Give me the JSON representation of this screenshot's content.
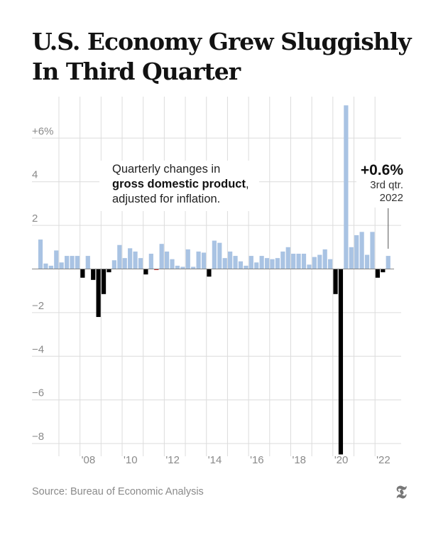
{
  "title": "U.S. Economy Grew Sluggishly In Third Quarter",
  "annotation": {
    "line1": "Quarterly changes in",
    "bold": "gross domestic product",
    "comma": ",",
    "line3": "adjusted for inflation."
  },
  "callout": {
    "value": "+0.6%",
    "line2": "3rd qtr.",
    "line3": "2022"
  },
  "source": "Source: Bureau of Economic Analysis",
  "logo": "T",
  "colors": {
    "positive": "#a9c3e3",
    "negative": "#000000",
    "slight_negative": "#d0312d",
    "grid": "#dcdcdc"
  },
  "chart_data": {
    "type": "bar",
    "title": "Quarterly changes in gross domestic product, adjusted for inflation.",
    "xlabel": "",
    "ylabel": "",
    "ylim": [
      -8.5,
      7.9
    ],
    "yticks": [
      {
        "v": 6,
        "label": "+6%"
      },
      {
        "v": 4,
        "label": "4"
      },
      {
        "v": 2,
        "label": "2"
      },
      {
        "v": 0,
        "label": ""
      },
      {
        "v": -2,
        "label": "−2"
      },
      {
        "v": -4,
        "label": "−4"
      },
      {
        "v": -6,
        "label": "−6"
      },
      {
        "v": -8,
        "label": "−8"
      }
    ],
    "xticks": [
      {
        "year": 2008,
        "label": "'08"
      },
      {
        "year": 2010,
        "label": "'10"
      },
      {
        "year": 2012,
        "label": "'12"
      },
      {
        "year": 2014,
        "label": "'14"
      },
      {
        "year": 2016,
        "label": "'16"
      },
      {
        "year": 2018,
        "label": "'18"
      },
      {
        "year": 2020,
        "label": "'20"
      },
      {
        "year": 2022,
        "label": "'22"
      }
    ],
    "start": "2006 Q1",
    "values": [
      1.35,
      0.25,
      0.15,
      0.85,
      0.3,
      0.6,
      0.6,
      0.6,
      -0.4,
      0.6,
      -0.5,
      -2.2,
      -1.15,
      -0.15,
      0.4,
      1.1,
      0.5,
      0.95,
      0.8,
      0.5,
      -0.25,
      0.7,
      -0.02,
      1.15,
      0.8,
      0.45,
      0.15,
      0.1,
      0.9,
      0.1,
      0.8,
      0.75,
      -0.35,
      1.3,
      1.2,
      0.5,
      0.8,
      0.6,
      0.35,
      0.15,
      0.6,
      0.3,
      0.6,
      0.5,
      0.45,
      0.5,
      0.8,
      1.0,
      0.7,
      0.7,
      0.7,
      0.2,
      0.55,
      0.65,
      0.9,
      0.45,
      -1.15,
      -8.5,
      7.5,
      1.0,
      1.55,
      1.7,
      0.65,
      1.7,
      -0.4,
      -0.15,
      0.6
    ]
  }
}
